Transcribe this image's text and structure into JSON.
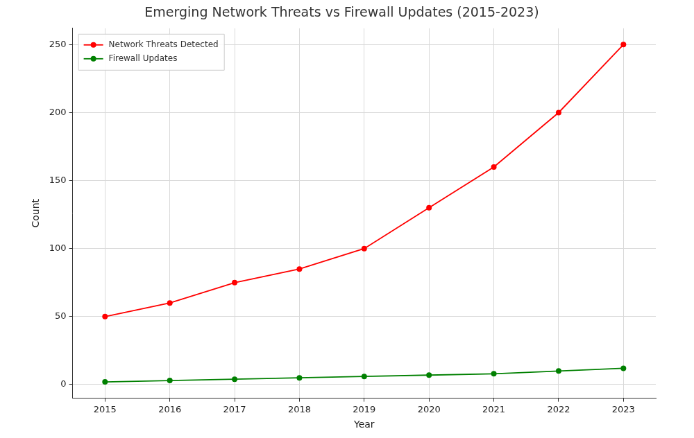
{
  "chart_data": {
    "type": "line",
    "title": "Emerging Network Threats vs Firewall Updates (2015-2023)",
    "x_label": "Year",
    "y_label": "Count",
    "categories": [
      "2015",
      "2016",
      "2017",
      "2018",
      "2019",
      "2020",
      "2021",
      "2022",
      "2023"
    ],
    "series": [
      {
        "name": "Network Threats Detected",
        "color": "#ff0000",
        "marker": "circle",
        "line_style": "solid",
        "values": [
          50,
          60,
          75,
          85,
          100,
          130,
          160,
          200,
          250
        ]
      },
      {
        "name": "Firewall Updates",
        "color": "#008000",
        "marker": "circle",
        "line_style": "solid",
        "values": [
          2,
          3,
          4,
          5,
          6,
          7,
          8,
          10,
          12
        ]
      }
    ],
    "ylim": [
      -10,
      262
    ],
    "yticks": [
      0,
      50,
      100,
      150,
      200,
      250
    ],
    "grid": true,
    "legend": "upper left"
  }
}
